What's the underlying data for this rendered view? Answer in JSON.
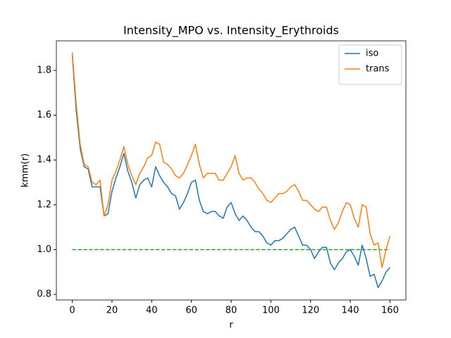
{
  "chart_data": {
    "type": "line",
    "title": "Intensity_MPO vs. Intensity_Erythroids",
    "x_label": "r",
    "y_label": "kmm(r)",
    "x": [
      0,
      2,
      4,
      6,
      8,
      10,
      12,
      14,
      16,
      18,
      20,
      22,
      24,
      26,
      28,
      30,
      32,
      34,
      36,
      38,
      40,
      42,
      44,
      46,
      48,
      50,
      52,
      54,
      56,
      58,
      60,
      62,
      64,
      66,
      68,
      70,
      72,
      74,
      76,
      78,
      80,
      82,
      84,
      86,
      88,
      90,
      92,
      94,
      96,
      98,
      100,
      102,
      104,
      106,
      108,
      110,
      112,
      114,
      116,
      118,
      120,
      122,
      124,
      126,
      128,
      130,
      132,
      134,
      136,
      138,
      140,
      142,
      144,
      146,
      148,
      150,
      152,
      154,
      156,
      158,
      160
    ],
    "series": [
      {
        "name": "iso",
        "color": "#1f77b4",
        "values": [
          1.87,
          1.62,
          1.45,
          1.37,
          1.36,
          1.28,
          1.28,
          1.28,
          1.15,
          1.16,
          1.26,
          1.32,
          1.37,
          1.43,
          1.35,
          1.3,
          1.23,
          1.29,
          1.31,
          1.32,
          1.28,
          1.37,
          1.33,
          1.3,
          1.28,
          1.25,
          1.24,
          1.18,
          1.21,
          1.25,
          1.3,
          1.31,
          1.22,
          1.17,
          1.16,
          1.17,
          1.17,
          1.15,
          1.14,
          1.19,
          1.21,
          1.16,
          1.13,
          1.15,
          1.13,
          1.1,
          1.08,
          1.08,
          1.06,
          1.03,
          1.02,
          1.04,
          1.04,
          1.05,
          1.07,
          1.09,
          1.1,
          1.06,
          1.02,
          1.02,
          1.0,
          0.96,
          0.99,
          1.01,
          1.01,
          0.94,
          0.91,
          0.94,
          0.96,
          0.99,
          1.0,
          0.97,
          0.93,
          1.02,
          0.96,
          0.88,
          0.89,
          0.83,
          0.86,
          0.9,
          0.92
        ]
      },
      {
        "name": "trans",
        "color": "#ff7f0e",
        "values": [
          1.88,
          1.65,
          1.47,
          1.38,
          1.37,
          1.3,
          1.29,
          1.31,
          1.15,
          1.2,
          1.31,
          1.35,
          1.4,
          1.46,
          1.38,
          1.33,
          1.29,
          1.34,
          1.37,
          1.41,
          1.42,
          1.48,
          1.47,
          1.39,
          1.38,
          1.36,
          1.33,
          1.32,
          1.34,
          1.38,
          1.42,
          1.47,
          1.38,
          1.32,
          1.34,
          1.34,
          1.34,
          1.31,
          1.31,
          1.34,
          1.37,
          1.42,
          1.34,
          1.31,
          1.32,
          1.32,
          1.3,
          1.27,
          1.25,
          1.22,
          1.21,
          1.23,
          1.25,
          1.25,
          1.26,
          1.28,
          1.29,
          1.26,
          1.22,
          1.22,
          1.2,
          1.18,
          1.17,
          1.19,
          1.19,
          1.13,
          1.09,
          1.12,
          1.17,
          1.21,
          1.2,
          1.14,
          1.1,
          1.2,
          1.19,
          1.07,
          1.02,
          1.03,
          0.92,
          1.0,
          1.06
        ]
      }
    ],
    "reference_line": {
      "x": [
        0,
        160
      ],
      "values": [
        1,
        1
      ],
      "color": "#2ca02c",
      "dashed": true
    },
    "xlim": [
      -8,
      168
    ],
    "ylim": [
      0.775,
      1.932
    ],
    "xticks": [
      0,
      20,
      40,
      60,
      80,
      100,
      120,
      140,
      160
    ],
    "yticks": [
      0.8,
      {
        "value": 1,
        "label": "1.0"
      },
      1.2,
      1.4,
      1.6,
      1.8
    ],
    "legend": "upper right"
  }
}
